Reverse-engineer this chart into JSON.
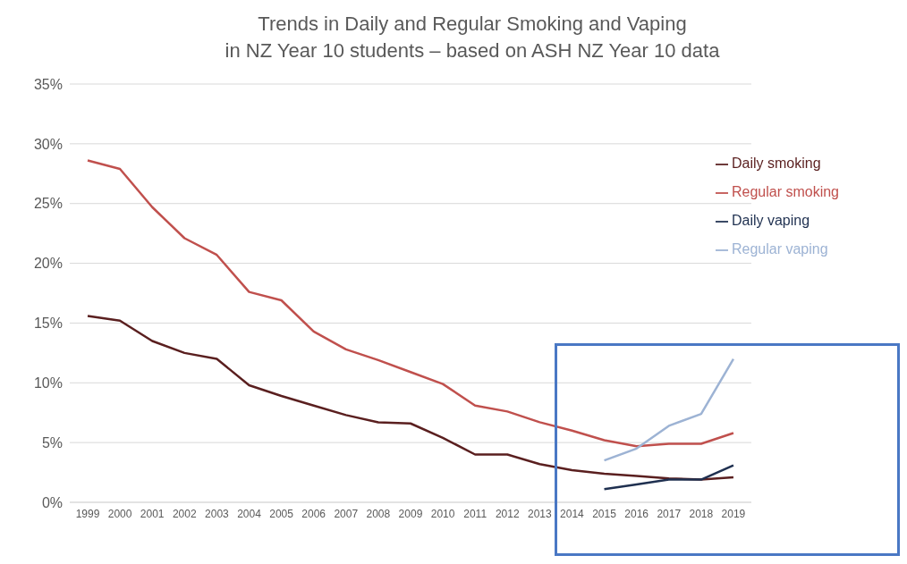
{
  "chart_data": {
    "type": "line",
    "title": "Trends in Daily and Regular Smoking and Vaping\nin NZ Year 10 students – based on ASH NZ Year 10 data",
    "categories": [
      "1999",
      "2000",
      "2001",
      "2002",
      "2003",
      "2004",
      "2005",
      "2006",
      "2007",
      "2008",
      "2009",
      "2010",
      "2011",
      "2012",
      "2013",
      "2014",
      "2015",
      "2016",
      "2017",
      "2018",
      "2019"
    ],
    "series": [
      {
        "name": "Daily smoking",
        "color": "#5a1f1f",
        "values": [
          15.6,
          15.2,
          13.5,
          12.5,
          12.0,
          9.8,
          8.9,
          8.1,
          7.3,
          6.7,
          6.6,
          5.4,
          4.0,
          4.0,
          3.2,
          2.7,
          2.4,
          2.2,
          2.0,
          1.9,
          2.1
        ]
      },
      {
        "name": "Regular smoking",
        "color": "#c0504d",
        "values": [
          28.6,
          27.9,
          24.7,
          22.1,
          20.7,
          17.6,
          16.9,
          14.3,
          12.8,
          11.9,
          10.9,
          9.9,
          8.1,
          7.6,
          6.7,
          6.0,
          5.2,
          4.7,
          4.9,
          4.9,
          5.8
        ]
      },
      {
        "name": "Daily vaping",
        "color": "#1f3050",
        "values": [
          null,
          null,
          null,
          null,
          null,
          null,
          null,
          null,
          null,
          null,
          null,
          null,
          null,
          null,
          null,
          null,
          1.1,
          1.5,
          1.9,
          1.9,
          3.1
        ]
      },
      {
        "name": "Regular vaping",
        "color": "#9db3d4",
        "values": [
          null,
          null,
          null,
          null,
          null,
          null,
          null,
          null,
          null,
          null,
          null,
          null,
          null,
          null,
          null,
          null,
          3.5,
          4.5,
          6.4,
          7.4,
          12.0
        ]
      }
    ],
    "ylim": [
      0,
      35
    ],
    "yticks": [
      {
        "value": 0,
        "label": "0%"
      },
      {
        "value": 5,
        "label": "5%"
      },
      {
        "value": 10,
        "label": "10%"
      },
      {
        "value": 15,
        "label": "15%"
      },
      {
        "value": 20,
        "label": "20%"
      },
      {
        "value": 25,
        "label": "25%"
      },
      {
        "value": 30,
        "label": "30%"
      },
      {
        "value": 35,
        "label": "35%"
      }
    ],
    "grid": "y",
    "legend": "top right",
    "marker": "none",
    "line_style": "solid"
  }
}
